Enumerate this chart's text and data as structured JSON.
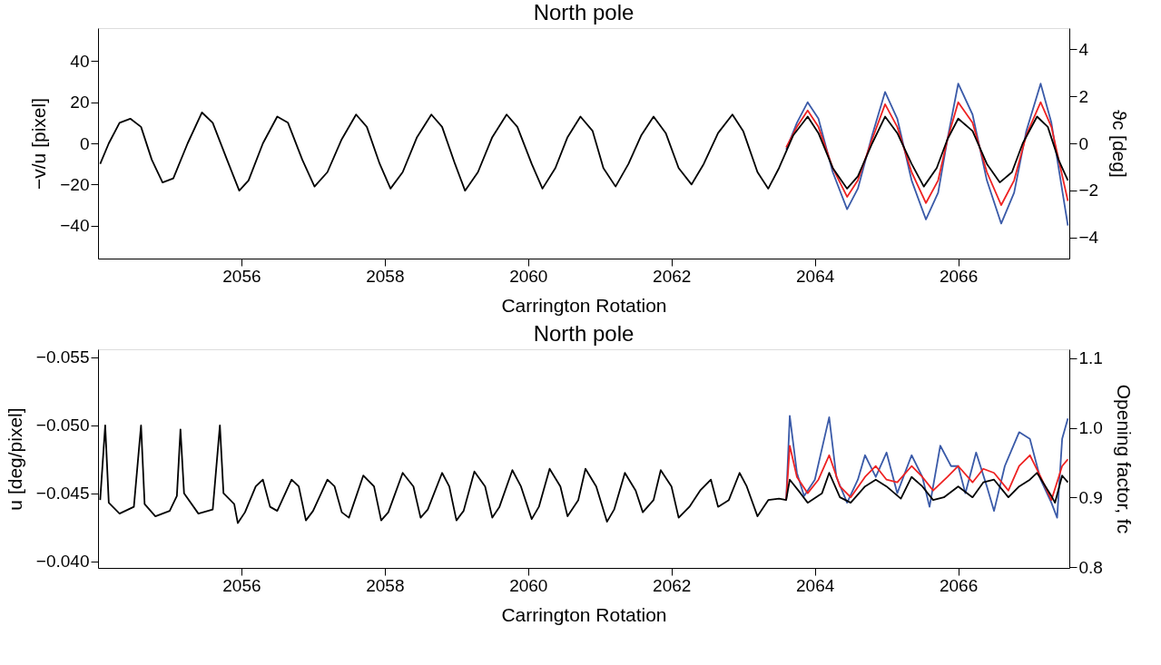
{
  "chart_data": [
    {
      "type": "line",
      "title": "North pole",
      "xlabel": "Carrington Rotation",
      "ylabel": "−v/u  [pixel]",
      "y2label": "ϑc  [deg]",
      "xlim": [
        2054.0,
        2067.55
      ],
      "xticks": [
        2056,
        2058,
        2060,
        2062,
        2064,
        2066
      ],
      "ylim": [
        -56,
        56
      ],
      "yticks": [
        -40,
        -20,
        0,
        20,
        40
      ],
      "y2lim": [
        -4.9,
        4.9
      ],
      "y2ticks": [
        -4,
        -2,
        0,
        2,
        4
      ],
      "grid": false,
      "series": [
        {
          "color": "#3a5aa8",
          "x": [
            2063.6,
            2063.75,
            2063.9,
            2064.05,
            2064.25,
            2064.45,
            2064.6,
            2064.8,
            2064.98,
            2065.15,
            2065.35,
            2065.55,
            2065.72,
            2065.85,
            2066.0,
            2066.2,
            2066.4,
            2066.6,
            2066.78,
            2066.95,
            2067.15,
            2067.3,
            2067.53
          ],
          "values": [
            -3,
            10,
            20,
            12,
            -14,
            -32,
            -22,
            4,
            25,
            12,
            -18,
            -37,
            -24,
            2,
            29,
            14,
            -18,
            -39,
            -24,
            6,
            29,
            10,
            -40
          ]
        },
        {
          "color": "#ee2222",
          "x": [
            2063.6,
            2063.75,
            2063.9,
            2064.05,
            2064.25,
            2064.45,
            2064.6,
            2064.8,
            2064.98,
            2065.15,
            2065.35,
            2065.55,
            2065.72,
            2065.85,
            2066.0,
            2066.2,
            2066.4,
            2066.6,
            2066.78,
            2066.95,
            2067.15,
            2067.3,
            2067.53
          ],
          "values": [
            -2,
            8,
            16,
            8,
            -12,
            -26,
            -18,
            2,
            19,
            8,
            -14,
            -29,
            -18,
            2,
            20,
            10,
            -14,
            -30,
            -18,
            4,
            20,
            8,
            -28
          ]
        },
        {
          "color": "#000000",
          "x": [
            2054.03,
            2054.15,
            2054.3,
            2054.45,
            2054.6,
            2054.75,
            2054.9,
            2055.05,
            2055.25,
            2055.45,
            2055.6,
            2055.8,
            2055.97,
            2056.1,
            2056.3,
            2056.5,
            2056.65,
            2056.85,
            2057.02,
            2057.2,
            2057.4,
            2057.6,
            2057.75,
            2057.93,
            2058.08,
            2058.25,
            2058.45,
            2058.65,
            2058.8,
            2058.98,
            2059.12,
            2059.3,
            2059.5,
            2059.7,
            2059.85,
            2060.05,
            2060.2,
            2060.38,
            2060.55,
            2060.73,
            2060.9,
            2061.05,
            2061.22,
            2061.4,
            2061.58,
            2061.75,
            2061.92,
            2062.1,
            2062.28,
            2062.45,
            2062.65,
            2062.85,
            2063.0,
            2063.2,
            2063.35,
            2063.5,
            2063.7,
            2063.9,
            2064.05,
            2064.25,
            2064.45,
            2064.6,
            2064.8,
            2064.98,
            2065.15,
            2065.35,
            2065.52,
            2065.7,
            2065.85,
            2066.0,
            2066.2,
            2066.4,
            2066.58,
            2066.75,
            2066.9,
            2067.1,
            2067.25,
            2067.4,
            2067.53
          ],
          "values": [
            -10,
            0,
            10,
            12,
            8,
            -8,
            -19,
            -17,
            0,
            15,
            10,
            -8,
            -23,
            -18,
            0,
            13,
            10,
            -8,
            -21,
            -14,
            2,
            14,
            8,
            -10,
            -22,
            -14,
            3,
            14,
            8,
            -10,
            -23,
            -14,
            3,
            14,
            8,
            -10,
            -22,
            -12,
            3,
            13,
            6,
            -12,
            -21,
            -10,
            4,
            13,
            5,
            -12,
            -20,
            -10,
            5,
            14,
            6,
            -14,
            -22,
            -12,
            4,
            13,
            5,
            -12,
            -22,
            -16,
            0,
            13,
            5,
            -10,
            -21,
            -12,
            2,
            12,
            6,
            -10,
            -19,
            -14,
            0,
            13,
            8,
            -8,
            -18
          ]
        }
      ]
    },
    {
      "type": "line",
      "title": "North pole",
      "xlabel": "Carrington Rotation",
      "ylabel": "u  [deg/pixel]",
      "y2label": "Opening factor,  fc",
      "xlim": [
        2054.0,
        2067.55
      ],
      "xticks": [
        2056,
        2058,
        2060,
        2062,
        2064,
        2066
      ],
      "ylim": [
        -0.0395,
        -0.0556
      ],
      "yticks": [
        {
          "value": -0.055,
          "label": "−0.055"
        },
        {
          "value": -0.05,
          "label": "−0.050"
        },
        {
          "value": -0.045,
          "label": "−0.045"
        },
        {
          "value": -0.04,
          "label": "−0.040"
        }
      ],
      "y2lim": [
        0.799,
        1.113
      ],
      "y2ticks": [
        {
          "value": 0.8,
          "label": "0.8"
        },
        {
          "value": 0.9,
          "label": "0.9"
        },
        {
          "value": 1.0,
          "label": "1.0"
        },
        {
          "value": 1.1,
          "label": "1.1"
        }
      ],
      "grid": false,
      "series": [
        {
          "color": "#3a5aa8",
          "x": [
            2063.6,
            2063.65,
            2063.75,
            2063.85,
            2064.0,
            2064.2,
            2064.3,
            2064.45,
            2064.6,
            2064.7,
            2064.85,
            2065.0,
            2065.15,
            2065.35,
            2065.5,
            2065.6,
            2065.75,
            2065.9,
            2066.0,
            2066.1,
            2066.25,
            2066.4,
            2066.5,
            2066.65,
            2066.85,
            2067.0,
            2067.15,
            2067.3,
            2067.38,
            2067.45,
            2067.53
          ],
          "values": [
            -0.0445,
            -0.0507,
            -0.0465,
            -0.0448,
            -0.046,
            -0.0506,
            -0.0462,
            -0.0443,
            -0.046,
            -0.0478,
            -0.0462,
            -0.048,
            -0.045,
            -0.0478,
            -0.0462,
            -0.044,
            -0.0485,
            -0.047,
            -0.047,
            -0.045,
            -0.048,
            -0.0455,
            -0.0437,
            -0.047,
            -0.0495,
            -0.049,
            -0.046,
            -0.0443,
            -0.0432,
            -0.049,
            -0.0505
          ]
        },
        {
          "color": "#ee2222",
          "x": [
            2063.6,
            2063.65,
            2063.75,
            2063.9,
            2064.05,
            2064.2,
            2064.35,
            2064.5,
            2064.7,
            2064.85,
            2065.0,
            2065.15,
            2065.35,
            2065.5,
            2065.65,
            2065.85,
            2066.0,
            2066.2,
            2066.35,
            2066.5,
            2066.7,
            2066.85,
            2067.0,
            2067.15,
            2067.3,
            2067.45,
            2067.53
          ],
          "values": [
            -0.0445,
            -0.0485,
            -0.0462,
            -0.045,
            -0.046,
            -0.0478,
            -0.0455,
            -0.0447,
            -0.0462,
            -0.047,
            -0.046,
            -0.0458,
            -0.047,
            -0.0462,
            -0.0452,
            -0.0462,
            -0.047,
            -0.0458,
            -0.0468,
            -0.0465,
            -0.0452,
            -0.047,
            -0.0478,
            -0.0462,
            -0.0445,
            -0.047,
            -0.0475
          ]
        },
        {
          "color": "#000000",
          "x": [
            2054.03,
            2054.1,
            2054.15,
            2054.3,
            2054.5,
            2054.6,
            2054.65,
            2054.8,
            2055.0,
            2055.1,
            2055.15,
            2055.2,
            2055.4,
            2055.6,
            2055.7,
            2055.75,
            2055.9,
            2055.95,
            2056.05,
            2056.2,
            2056.3,
            2056.4,
            2056.5,
            2056.7,
            2056.8,
            2056.9,
            2057.0,
            2057.2,
            2057.3,
            2057.4,
            2057.5,
            2057.7,
            2057.85,
            2057.95,
            2058.05,
            2058.25,
            2058.4,
            2058.5,
            2058.6,
            2058.8,
            2058.9,
            2059.0,
            2059.1,
            2059.25,
            2059.4,
            2059.5,
            2059.6,
            2059.78,
            2059.9,
            2060.05,
            2060.15,
            2060.3,
            2060.45,
            2060.55,
            2060.7,
            2060.8,
            2060.95,
            2061.1,
            2061.2,
            2061.35,
            2061.5,
            2061.6,
            2061.75,
            2061.85,
            2062.0,
            2062.1,
            2062.25,
            2062.4,
            2062.55,
            2062.65,
            2062.8,
            2062.95,
            2063.05,
            2063.2,
            2063.35,
            2063.5,
            2063.6,
            2063.65,
            2063.8,
            2063.9,
            2064.1,
            2064.2,
            2064.35,
            2064.5,
            2064.7,
            2064.85,
            2065.0,
            2065.2,
            2065.35,
            2065.5,
            2065.65,
            2065.8,
            2066.0,
            2066.2,
            2066.35,
            2066.5,
            2066.7,
            2066.85,
            2067.0,
            2067.1,
            2067.3,
            2067.35,
            2067.45,
            2067.53
          ],
          "values": [
            -0.0445,
            -0.05,
            -0.0443,
            -0.0435,
            -0.044,
            -0.05,
            -0.0442,
            -0.0433,
            -0.0437,
            -0.0448,
            -0.0497,
            -0.045,
            -0.0435,
            -0.0438,
            -0.05,
            -0.045,
            -0.0442,
            -0.0428,
            -0.0436,
            -0.0455,
            -0.046,
            -0.044,
            -0.0437,
            -0.046,
            -0.0455,
            -0.043,
            -0.0437,
            -0.046,
            -0.0455,
            -0.0436,
            -0.0432,
            -0.0463,
            -0.0455,
            -0.043,
            -0.0436,
            -0.0465,
            -0.0455,
            -0.0432,
            -0.0438,
            -0.0465,
            -0.0455,
            -0.043,
            -0.0437,
            -0.0466,
            -0.0455,
            -0.0432,
            -0.044,
            -0.0467,
            -0.0455,
            -0.0431,
            -0.044,
            -0.0468,
            -0.0455,
            -0.0433,
            -0.0445,
            -0.0468,
            -0.0455,
            -0.0429,
            -0.0438,
            -0.0465,
            -0.0452,
            -0.0436,
            -0.0445,
            -0.0467,
            -0.0455,
            -0.0432,
            -0.044,
            -0.0452,
            -0.046,
            -0.044,
            -0.0445,
            -0.0465,
            -0.0455,
            -0.0433,
            -0.0445,
            -0.0446,
            -0.0445,
            -0.046,
            -0.045,
            -0.0443,
            -0.045,
            -0.0465,
            -0.0447,
            -0.0443,
            -0.0455,
            -0.046,
            -0.0455,
            -0.0446,
            -0.0462,
            -0.0455,
            -0.0445,
            -0.0447,
            -0.0455,
            -0.0447,
            -0.0458,
            -0.046,
            -0.0447,
            -0.0455,
            -0.046,
            -0.0465,
            -0.0448,
            -0.0443,
            -0.0463,
            -0.0458
          ]
        }
      ]
    }
  ]
}
